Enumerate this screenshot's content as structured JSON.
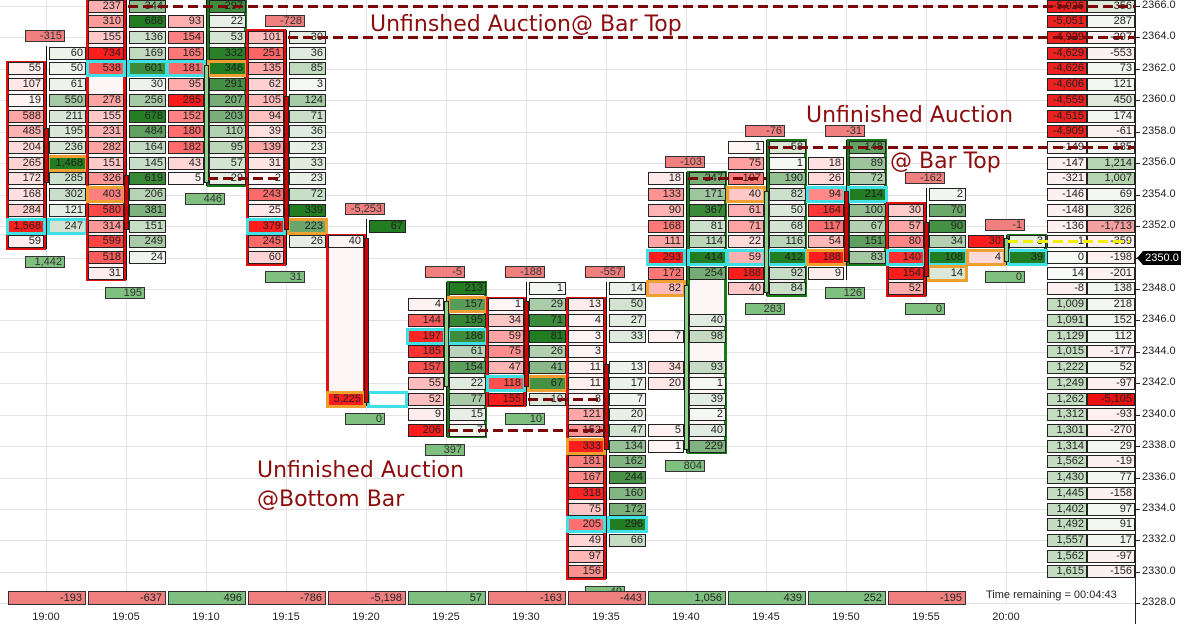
{
  "annotations": {
    "top_left": "Unfinshed Auction@ Bar Top",
    "top_right_line1": "Unfinished Auction",
    "top_right_line2": "@ Bar Top",
    "bottom_line1": "Unfinished Auction",
    "bottom_line2": "@Bottom Bar"
  },
  "status": {
    "time_remaining": "Time remaining = 00:04:43"
  },
  "price_axis": {
    "labels": [
      "2366.0",
      "2364.0",
      "2362.0",
      "2360.0",
      "2358.0",
      "2356.0",
      "2354.0",
      "2352.0",
      "2350.0",
      "2348.0",
      "2346.0",
      "2344.0",
      "2342.0",
      "2340.0",
      "2338.0",
      "2336.0",
      "2334.0",
      "2332.0",
      "2330.0",
      "2328.0"
    ],
    "current_price": "2350.0",
    "top_price": 2366,
    "bottom_price": 2328
  },
  "colors": {
    "bid": "#ff0000",
    "ask": "#0a6e0a",
    "poc": "#3fe0e6",
    "imbalance": "#f0a030",
    "unfinished_line": "#7a0a0a",
    "current_line": "#f0f000"
  },
  "bars": [
    {
      "time": "19:00",
      "top": "-315",
      "bottom": "1,442",
      "delta": "-193",
      "box": "left",
      "box_color": "red",
      "candle": {
        "high": 2363,
        "low": 2351,
        "body_top": 2358,
        "body_bottom": 2355,
        "color": "red"
      },
      "rows": [
        [
          2363,
          null,
          "60"
        ],
        [
          2362,
          "55",
          "50"
        ],
        [
          2361,
          "107",
          "61"
        ],
        [
          2360,
          "19",
          "550"
        ],
        [
          2359,
          "588",
          "211"
        ],
        [
          2358,
          "485",
          "195"
        ],
        [
          2357,
          "204",
          "236"
        ],
        [
          2356,
          "265",
          "1,468",
          null,
          "o"
        ],
        [
          2355,
          "172",
          "285"
        ],
        [
          2354,
          "168",
          "302"
        ],
        [
          2353,
          "284",
          "121"
        ],
        [
          2352,
          "1,568",
          "247",
          "c",
          "c"
        ],
        [
          2351,
          "59",
          null
        ]
      ]
    },
    {
      "time": "19:05",
      "top": null,
      "bottom": "195",
      "delta": "-637",
      "box": "left",
      "box_color": "red",
      "candle": {
        "high": 2366,
        "low": 2349,
        "body_top": 2355,
        "body_bottom": 2352,
        "color": "red"
      },
      "rows": [
        [
          2366,
          "237",
          "344"
        ],
        [
          2365,
          "310",
          "688"
        ],
        [
          2364,
          "155",
          "136"
        ],
        [
          2363,
          "734",
          "169"
        ],
        [
          2362,
          "538",
          "601",
          "c",
          "c"
        ],
        [
          2361,
          null,
          "30"
        ],
        [
          2360,
          "278",
          "256"
        ],
        [
          2359,
          "155",
          "678"
        ],
        [
          2358,
          "231",
          "484"
        ],
        [
          2357,
          "282",
          "164"
        ],
        [
          2356,
          "151",
          "145"
        ],
        [
          2355,
          "326",
          "619"
        ],
        [
          2354,
          "403",
          "206",
          "o"
        ],
        [
          2353,
          "580",
          "381"
        ],
        [
          2352,
          "314",
          "151"
        ],
        [
          2351,
          "599",
          "249"
        ],
        [
          2350,
          "518",
          "24"
        ],
        [
          2349,
          "31",
          null
        ]
      ]
    },
    {
      "time": "19:10",
      "top": null,
      "bottom": "446",
      "delta": "496",
      "box": "right",
      "box_color": "green",
      "candle": {
        "high": 2366,
        "low": 2355,
        "body_top": 2362,
        "body_bottom": 2355,
        "color": "green"
      },
      "rows": [
        [
          2366,
          null,
          "297"
        ],
        [
          2365,
          "93",
          "22"
        ],
        [
          2364,
          "154",
          "53"
        ],
        [
          2363,
          "165",
          "332"
        ],
        [
          2362,
          "181",
          "346",
          "c",
          "o"
        ],
        [
          2361,
          "95",
          "291"
        ],
        [
          2360,
          "285",
          "207"
        ],
        [
          2359,
          "152",
          "203"
        ],
        [
          2358,
          "180",
          "110"
        ],
        [
          2357,
          "182",
          "95"
        ],
        [
          2356,
          "43",
          "57"
        ],
        [
          2355,
          "5",
          "29"
        ]
      ]
    },
    {
      "time": "19:15",
      "top": "-728",
      "bottom": "31",
      "delta": "-786",
      "box": "left",
      "box_color": "red",
      "candle": {
        "high": 2364,
        "low": 2350,
        "body_top": 2360,
        "body_bottom": 2352,
        "color": "red"
      },
      "rows": [
        [
          2364,
          "101",
          "30"
        ],
        [
          2363,
          "251",
          "36"
        ],
        [
          2362,
          "135",
          "85"
        ],
        [
          2361,
          "62",
          "3"
        ],
        [
          2360,
          "105",
          "124"
        ],
        [
          2359,
          "94",
          "71"
        ],
        [
          2358,
          "39",
          "36"
        ],
        [
          2357,
          "139",
          "23"
        ],
        [
          2356,
          "31",
          "33"
        ],
        [
          2355,
          "2",
          "23"
        ],
        [
          2354,
          "243",
          "72"
        ],
        [
          2353,
          "25",
          "339"
        ],
        [
          2352,
          "379",
          "223",
          "c",
          "o"
        ],
        [
          2351,
          "245",
          "26"
        ],
        [
          2350,
          "60",
          null
        ]
      ]
    },
    {
      "time": "19:20",
      "top": "-5,253",
      "bottom": "0",
      "delta": "-5,198",
      "box": "left",
      "box_color": "red",
      "candle": {
        "high": 2352,
        "low": 2341,
        "body_top": 2351,
        "body_bottom": 2341,
        "color": "red"
      },
      "rows": [
        [
          2352,
          null,
          "67"
        ],
        [
          2351,
          "40",
          null
        ],
        [
          2341,
          "5,225",
          "",
          "o",
          "c"
        ]
      ]
    },
    {
      "time": "19:25",
      "top": "-5",
      "bottom": "397",
      "delta": "57",
      "box": "right",
      "box_color": "green",
      "candle": {
        "high": 2348,
        "low": 2339,
        "body_top": 2347,
        "body_bottom": 2342,
        "color": "green"
      },
      "rows": [
        [
          2348,
          null,
          "213"
        ],
        [
          2347,
          "4",
          "157",
          null,
          "o"
        ],
        [
          2346,
          "144",
          "195"
        ],
        [
          2345,
          "197",
          "186",
          "c",
          "c"
        ],
        [
          2344,
          "185",
          "61"
        ],
        [
          2343,
          "157",
          "154"
        ],
        [
          2342,
          "55",
          "22"
        ],
        [
          2341,
          "52",
          "77"
        ],
        [
          2340,
          "9",
          "15"
        ],
        [
          2339,
          "206",
          "7"
        ]
      ]
    },
    {
      "time": "19:30",
      "top": "-188",
      "bottom": "10",
      "delta": "-163",
      "box": "left",
      "box_color": "red",
      "candle": {
        "high": 2348,
        "low": 2341,
        "body_top": 2347,
        "body_bottom": 2342,
        "color": "red"
      },
      "rows": [
        [
          2348,
          null,
          "1"
        ],
        [
          2347,
          "1",
          "29"
        ],
        [
          2346,
          "34",
          "71"
        ],
        [
          2345,
          "59",
          "81"
        ],
        [
          2344,
          "75",
          "26"
        ],
        [
          2343,
          "47",
          "41"
        ],
        [
          2342,
          "118",
          "67",
          "c",
          "o"
        ],
        [
          2341,
          "155",
          "10"
        ]
      ]
    },
    {
      "time": "19:35",
      "top": "-557",
      "bottom": "49",
      "delta": "-443",
      "box": "left",
      "box_color": "red",
      "candle": {
        "high": 2348,
        "low": 2330,
        "body_top": 2343,
        "body_bottom": 2338,
        "color": "red"
      },
      "rows": [
        [
          2348,
          null,
          "14"
        ],
        [
          2347,
          "13",
          "50"
        ],
        [
          2346,
          "4",
          "27"
        ],
        [
          2345,
          "3",
          "33"
        ],
        [
          2344,
          "3",
          null
        ],
        [
          2343,
          "11",
          "13"
        ],
        [
          2342,
          "11",
          "17"
        ],
        [
          2341,
          "8",
          "7"
        ],
        [
          2340,
          "121",
          "20"
        ],
        [
          2339,
          "152",
          "47"
        ],
        [
          2338,
          "333",
          "134",
          "o"
        ],
        [
          2337,
          "181",
          "162"
        ],
        [
          2336,
          "167",
          "244"
        ],
        [
          2335,
          "318",
          "160"
        ],
        [
          2334,
          "75",
          "172"
        ],
        [
          2333,
          "205",
          "296",
          "c",
          "c"
        ],
        [
          2332,
          "49",
          "66"
        ],
        [
          2331,
          "97",
          null
        ],
        [
          2330,
          "156",
          null
        ]
      ]
    },
    {
      "time": "19:40",
      "top": "-103",
      "bottom": "804",
      "delta": "1,056",
      "box": "right",
      "box_color": "green",
      "candle": {
        "high": 2355,
        "low": 2338,
        "body_top": 2348,
        "body_bottom": 2338,
        "color": "green"
      },
      "rows": [
        [
          2355,
          "18",
          "247"
        ],
        [
          2354,
          "133",
          "171"
        ],
        [
          2353,
          "90",
          "367"
        ],
        [
          2352,
          "168",
          "81"
        ],
        [
          2351,
          "111",
          "114"
        ],
        [
          2350,
          "293",
          "414",
          "c",
          "c"
        ],
        [
          2349,
          "172",
          "254"
        ],
        [
          2348,
          "82",
          null,
          "o"
        ],
        [
          2346,
          null,
          "40"
        ],
        [
          2345,
          "7",
          "98"
        ],
        [
          2343,
          "34",
          "93"
        ],
        [
          2342,
          "20",
          "1"
        ],
        [
          2341,
          null,
          "39"
        ],
        [
          2340,
          null,
          "2"
        ],
        [
          2339,
          "5",
          "40"
        ],
        [
          2338,
          "1",
          "229"
        ]
      ]
    },
    {
      "time": "19:45",
      "top": "-76",
      "bottom": "283",
      "delta": "439",
      "box": "right",
      "box_color": "green",
      "candle": {
        "high": 2357,
        "low": 2348,
        "body_top": 2354,
        "body_bottom": 2348,
        "color": "green"
      },
      "rows": [
        [
          2357,
          "1",
          "58"
        ],
        [
          2356,
          "75",
          "1"
        ],
        [
          2355,
          "107",
          "190"
        ],
        [
          2354,
          "40",
          "82",
          "o"
        ],
        [
          2353,
          "61",
          "50"
        ],
        [
          2352,
          "71",
          "68"
        ],
        [
          2351,
          "22",
          "116"
        ],
        [
          2350,
          "59",
          "412",
          "c",
          "c"
        ],
        [
          2349,
          "188",
          "92"
        ],
        [
          2348,
          "40",
          "84"
        ]
      ]
    },
    {
      "time": "19:50",
      "top": "-31",
      "bottom": "126",
      "delta": "252",
      "box": "right",
      "box_color": "green",
      "candle": {
        "high": 2357,
        "low": 2349,
        "body_top": 2354,
        "body_bottom": 2350,
        "color": "red"
      },
      "rows": [
        [
          2357,
          null,
          "148"
        ],
        [
          2356,
          "18",
          "89"
        ],
        [
          2355,
          "26",
          "72"
        ],
        [
          2354,
          "94",
          "214",
          "c",
          "c"
        ],
        [
          2353,
          "164",
          "100"
        ],
        [
          2352,
          "117",
          "67"
        ],
        [
          2351,
          "54",
          "151"
        ],
        [
          2350,
          "188",
          "83",
          "o"
        ],
        [
          2349,
          "9",
          null
        ]
      ]
    },
    {
      "time": "19:55",
      "top": "-162",
      "bottom": "0",
      "delta": "-195",
      "box": "left",
      "box_color": "red",
      "candle": {
        "high": 2354,
        "low": 2348,
        "body_top": 2352,
        "body_bottom": 2349,
        "color": "red"
      },
      "rows": [
        [
          2354,
          null,
          "2"
        ],
        [
          2353,
          "30",
          "70"
        ],
        [
          2352,
          "57",
          "90"
        ],
        [
          2351,
          "80",
          "34"
        ],
        [
          2350,
          "140",
          "108",
          "c",
          "c"
        ],
        [
          2349,
          "154",
          "14",
          null,
          "o"
        ],
        [
          2348,
          "52",
          null
        ]
      ]
    },
    {
      "time": "20:00",
      "top": "-1",
      "bottom": "0",
      "delta": null,
      "box": "right",
      "box_color": "green",
      "candle": {
        "high": 2351,
        "low": 2350,
        "body_top": 2351,
        "body_bottom": 2350,
        "color": "green"
      },
      "rows": [
        [
          2351,
          "30",
          "3"
        ],
        [
          2350,
          "4",
          "39",
          "o",
          "c"
        ]
      ]
    }
  ],
  "profile": {
    "start_price": 2366,
    "left": [
      "-5,926",
      "-5,051",
      "-4,929",
      "-4,629",
      "-4,626",
      "-4,606",
      "-4,559",
      "-4,515",
      "-4,909",
      "-149",
      "-147",
      "-321",
      "-146",
      "-148",
      "-136",
      "-1",
      "0",
      "14",
      "-8",
      "1,009",
      "1,091",
      "1,129",
      "1,015",
      "1,222",
      "1,249",
      "1,262",
      "1,312",
      "1,301",
      "1,314",
      "1,562",
      "1,430",
      "1,445",
      "1,402",
      "1,492",
      "1,557",
      "1,562",
      "1,615"
    ],
    "right": [
      "356",
      "287",
      "-297",
      "-553",
      "73",
      "121",
      "450",
      "174",
      "-61",
      "185",
      "1,214",
      "1,007",
      "69",
      "326",
      "-1,713",
      "-359",
      "-198",
      "-201",
      "138",
      "218",
      "152",
      "112",
      "-177",
      "52",
      "-97",
      "-5,105",
      "-93",
      "-270",
      "29",
      "-19",
      "77",
      "-158",
      "97",
      "91",
      "17",
      "-97",
      "-156"
    ]
  },
  "levels": [
    {
      "price": 2366,
      "from": "19:05",
      "type": "unfinished"
    },
    {
      "price": 2364,
      "from": "19:15",
      "type": "unfinished"
    },
    {
      "price": 2357,
      "from": "19:45",
      "type": "unfinished"
    },
    {
      "price": 2355,
      "from": "19:10",
      "to": "19:15",
      "type": "unfinished"
    },
    {
      "price": 2355,
      "from": "19:40",
      "to": "19:45",
      "type": "unfinished"
    },
    {
      "price": 2341,
      "from": "19:30",
      "to": "19:35",
      "type": "unfinished"
    },
    {
      "price": 2339,
      "from": "19:25",
      "to": "19:35",
      "type": "unfinished"
    },
    {
      "price": 2351,
      "from": "20:00",
      "type": "current"
    }
  ]
}
